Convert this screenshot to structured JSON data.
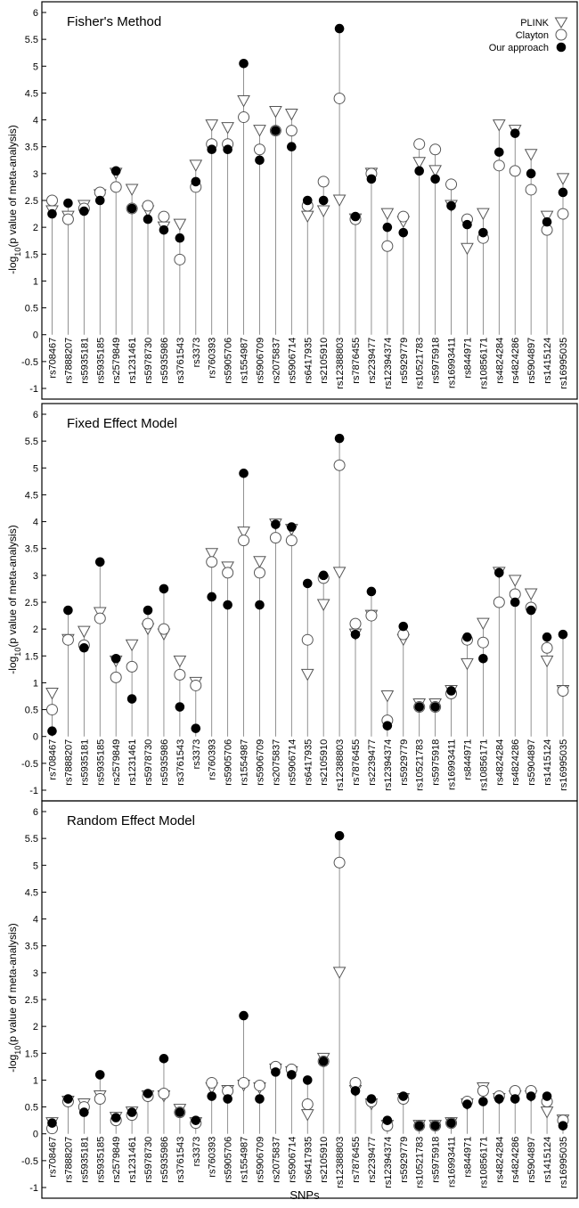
{
  "figure": {
    "ylabel_main": "-log",
    "ylabel_sub": "10",
    "ylabel_rest": "(p value of meta-analysis)",
    "xlabel": "SNPs"
  },
  "legend": {
    "entries": [
      {
        "name": "PLINK",
        "marker": "triangle-down-open"
      },
      {
        "name": "Clayton",
        "marker": "circle-open"
      },
      {
        "name": "Our approach",
        "marker": "circle-filled"
      }
    ],
    "placement": "top-right (top panel)"
  },
  "chart_data": [
    {
      "type": "scatter",
      "title": "Fisher's Method",
      "ylim": [
        -1,
        6
      ],
      "yticks": [
        "-1",
        "-0.5",
        "0",
        "0.5",
        "1",
        "1.5",
        "2",
        "2.5",
        "3",
        "3.5",
        "4",
        "4.5",
        "5",
        "5.5",
        "6"
      ],
      "categories": [
        "rs708467",
        "rs7888207",
        "rs5935181",
        "rs5935185",
        "rs2579849",
        "rs1231461",
        "rs5978730",
        "rs5935986",
        "rs3761543",
        "rs3373",
        "rs760393",
        "rs5905706",
        "rs1554987",
        "rs5906709",
        "rs2075837",
        "rs5906714",
        "rs6417935",
        "rs2105910",
        "rs12388803",
        "rs7876455",
        "rs2239477",
        "rs12394374",
        "rs5929779",
        "rs10521783",
        "rs5975918",
        "rs16993411",
        "rs844971",
        "rs10856171",
        "rs4824284",
        "rs4824286",
        "rs5904897",
        "rs1415124",
        "rs16995035"
      ],
      "series": [
        {
          "name": "PLINK",
          "values": [
            2.3,
            2.2,
            2.4,
            2.6,
            3.0,
            2.7,
            2.3,
            2.0,
            2.05,
            3.15,
            3.9,
            3.85,
            4.35,
            3.8,
            4.15,
            4.1,
            2.2,
            2.3,
            2.5,
            2.15,
            3.0,
            2.25,
            2.1,
            3.2,
            3.05,
            2.4,
            1.6,
            2.25,
            3.9,
            3.8,
            3.35,
            2.2,
            2.9
          ]
        },
        {
          "name": "Clayton",
          "values": [
            2.5,
            2.15,
            2.35,
            2.65,
            2.75,
            2.35,
            2.4,
            2.2,
            1.4,
            2.75,
            3.55,
            3.55,
            4.05,
            3.45,
            3.8,
            3.8,
            2.4,
            2.85,
            4.4,
            2.15,
            3.0,
            1.65,
            2.2,
            3.55,
            3.45,
            2.8,
            2.15,
            1.8,
            3.15,
            3.05,
            2.7,
            1.95,
            2.25
          ]
        },
        {
          "name": "Our approach",
          "values": [
            2.25,
            2.45,
            2.3,
            2.5,
            3.05,
            2.35,
            2.15,
            1.95,
            1.8,
            2.85,
            3.45,
            3.45,
            5.05,
            3.25,
            3.8,
            3.5,
            2.5,
            2.5,
            5.7,
            2.2,
            2.9,
            2.0,
            1.9,
            3.05,
            2.9,
            2.4,
            2.05,
            1.9,
            3.4,
            3.75,
            3.0,
            2.1,
            2.65
          ]
        }
      ]
    },
    {
      "type": "scatter",
      "title": "Fixed Effect Model",
      "ylim": [
        -1,
        6
      ],
      "yticks": [
        "-1",
        "-0.5",
        "0",
        "0.5",
        "1",
        "1.5",
        "2",
        "2.5",
        "3",
        "3.5",
        "4",
        "4.5",
        "5",
        "5.5",
        "6"
      ],
      "categories": [
        "rs708467",
        "rs7888207",
        "rs5935181",
        "rs5935185",
        "rs2579849",
        "rs1231461",
        "rs5978730",
        "rs5935986",
        "rs3761543",
        "rs3373",
        "rs760393",
        "rs5905706",
        "rs1554987",
        "rs5906709",
        "rs2075837",
        "rs5906714",
        "rs6417935",
        "rs2105910",
        "rs12388803",
        "rs7876455",
        "rs2239477",
        "rs12394374",
        "rs5929779",
        "rs10521783",
        "rs5975918",
        "rs16993411",
        "rs844971",
        "rs10856171",
        "rs4824284",
        "rs4824286",
        "rs5904897",
        "rs1415124",
        "rs16995035"
      ],
      "series": [
        {
          "name": "PLINK",
          "values": [
            0.8,
            1.8,
            1.95,
            2.3,
            1.4,
            1.7,
            2.0,
            1.9,
            1.4,
            1.0,
            3.4,
            3.15,
            3.8,
            3.25,
            3.95,
            3.85,
            1.15,
            2.45,
            3.05,
            1.9,
            2.25,
            0.75,
            1.8,
            0.6,
            0.6,
            0.85,
            1.35,
            2.1,
            3.05,
            2.9,
            2.65,
            1.4,
            0.85
          ]
        },
        {
          "name": "Clayton",
          "values": [
            0.5,
            1.8,
            1.7,
            2.2,
            1.1,
            1.3,
            2.1,
            2.0,
            1.15,
            0.95,
            3.25,
            3.05,
            3.65,
            3.05,
            3.7,
            3.65,
            1.8,
            2.95,
            5.05,
            2.1,
            2.25,
            0.3,
            1.9,
            0.55,
            0.55,
            0.8,
            1.8,
            1.75,
            2.5,
            2.65,
            2.4,
            1.65,
            0.85
          ]
        },
        {
          "name": "Our approach",
          "values": [
            0.1,
            2.35,
            1.65,
            3.25,
            1.45,
            0.7,
            2.35,
            2.75,
            0.55,
            0.15,
            2.6,
            2.45,
            4.9,
            2.45,
            3.95,
            3.9,
            2.85,
            3.0,
            5.55,
            1.9,
            2.7,
            0.2,
            2.05,
            0.55,
            0.55,
            0.85,
            1.85,
            1.45,
            3.05,
            2.5,
            2.35,
            1.85,
            1.9
          ]
        }
      ]
    },
    {
      "type": "scatter",
      "title": "Random Effect Model",
      "ylim": [
        -1,
        6
      ],
      "yticks": [
        "-1",
        "-0.5",
        "0",
        "0.5",
        "1",
        "1.5",
        "2",
        "2.5",
        "3",
        "3.5",
        "4",
        "4.5",
        "5",
        "5.5",
        "6"
      ],
      "categories": [
        "rs708467",
        "rs7888207",
        "rs5935181",
        "rs5935185",
        "rs2579849",
        "rs1231461",
        "rs5978730",
        "rs5935986",
        "rs3761543",
        "rs3373",
        "rs760393",
        "rs5905706",
        "rs1554987",
        "rs5906709",
        "rs2075837",
        "rs5906714",
        "rs6417935",
        "rs2105910",
        "rs12388803",
        "rs7876455",
        "rs2239477",
        "rs12394374",
        "rs5929779",
        "rs10521783",
        "rs5975918",
        "rs16993411",
        "rs844971",
        "rs10856171",
        "rs4824284",
        "rs4824286",
        "rs5904897",
        "rs1415124",
        "rs16995035"
      ],
      "series": [
        {
          "name": "PLINK",
          "values": [
            0.2,
            0.6,
            0.55,
            0.7,
            0.3,
            0.4,
            0.7,
            0.7,
            0.45,
            0.2,
            0.85,
            0.8,
            0.9,
            0.85,
            1.2,
            1.15,
            0.35,
            1.4,
            3.0,
            0.8,
            0.55,
            0.15,
            0.65,
            0.15,
            0.15,
            0.2,
            0.55,
            0.85,
            0.65,
            0.7,
            0.7,
            0.4,
            0.25
          ]
        },
        {
          "name": "Clayton",
          "values": [
            0.1,
            0.6,
            0.5,
            0.65,
            0.25,
            0.35,
            0.7,
            0.75,
            0.4,
            0.2,
            0.95,
            0.8,
            0.95,
            0.9,
            1.25,
            1.2,
            0.55,
            1.35,
            5.05,
            0.95,
            0.6,
            0.15,
            0.65,
            0.15,
            0.15,
            0.2,
            0.6,
            0.8,
            0.7,
            0.8,
            0.8,
            0.6,
            0.25
          ]
        },
        {
          "name": "Our approach",
          "values": [
            0.2,
            0.65,
            0.4,
            1.1,
            0.3,
            0.4,
            0.75,
            1.4,
            0.4,
            0.25,
            0.7,
            0.65,
            2.2,
            0.65,
            1.15,
            1.1,
            1.0,
            1.35,
            5.55,
            0.8,
            0.65,
            0.25,
            0.7,
            0.15,
            0.15,
            0.2,
            0.55,
            0.6,
            0.65,
            0.65,
            0.7,
            0.7,
            0.15
          ]
        }
      ]
    }
  ]
}
